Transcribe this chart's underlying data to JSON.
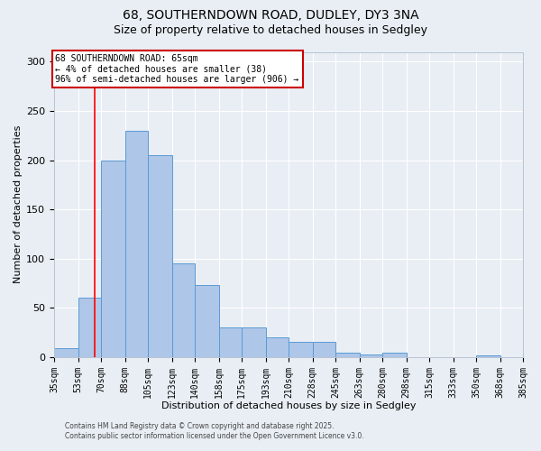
{
  "title_line1": "68, SOUTHERNDOWN ROAD, DUDLEY, DY3 3NA",
  "title_line2": "Size of property relative to detached houses in Sedgley",
  "xlabel": "Distribution of detached houses by size in Sedgley",
  "ylabel": "Number of detached properties",
  "bar_labels": [
    "35sqm",
    "53sqm",
    "70sqm",
    "88sqm",
    "105sqm",
    "123sqm",
    "140sqm",
    "158sqm",
    "175sqm",
    "193sqm",
    "210sqm",
    "228sqm",
    "245sqm",
    "263sqm",
    "280sqm",
    "298sqm",
    "315sqm",
    "333sqm",
    "350sqm",
    "368sqm",
    "385sqm"
  ],
  "bar_heights": [
    9,
    60,
    200,
    230,
    205,
    95,
    73,
    30,
    30,
    20,
    15,
    15,
    4,
    3,
    4,
    0,
    0,
    0,
    2,
    0,
    2
  ],
  "bar_color": "#aec6e8",
  "bar_edge_color": "#5b9bd5",
  "background_color": "#e8eef4",
  "grid_color": "#ffffff",
  "red_line_x": 65,
  "bin_edges": [
    35,
    53,
    70,
    88,
    105,
    123,
    140,
    158,
    175,
    193,
    210,
    228,
    245,
    263,
    280,
    298,
    315,
    333,
    350,
    368,
    385
  ],
  "annotation_text": "68 SOUTHERNDOWN ROAD: 65sqm\n← 4% of detached houses are smaller (38)\n96% of semi-detached houses are larger (906) →",
  "annotation_box_color": "#ffffff",
  "annotation_box_edge": "#cc0000",
  "ylim": [
    0,
    310
  ],
  "yticks": [
    0,
    50,
    100,
    150,
    200,
    250,
    300
  ],
  "footer_line1": "Contains HM Land Registry data © Crown copyright and database right 2025.",
  "footer_line2": "Contains public sector information licensed under the Open Government Licence v3.0."
}
